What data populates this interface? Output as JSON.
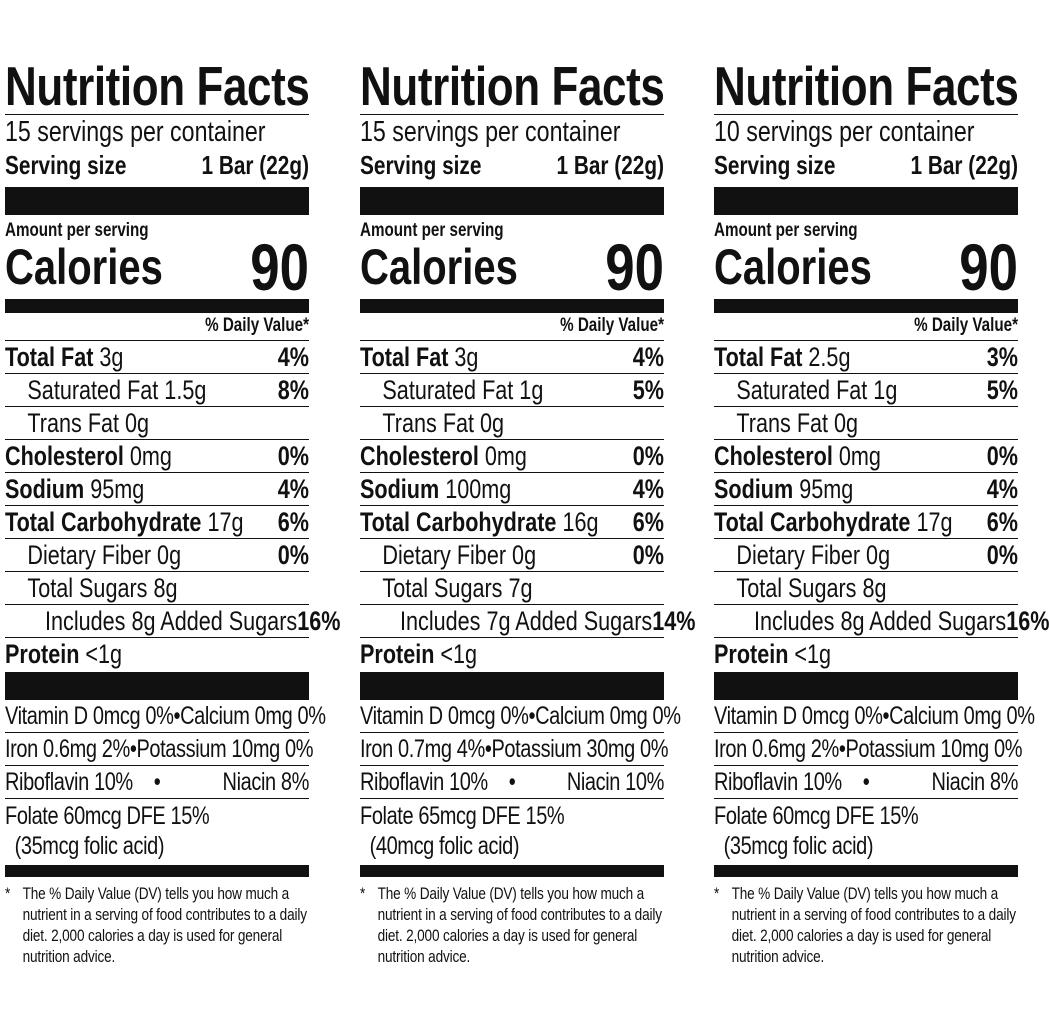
{
  "panels": [
    {
      "title": "Nutrition Facts",
      "servings": "15 servings per container",
      "serving_size_label": "Serving size",
      "serving_size_value": "1 Bar (22g)",
      "amount_per_serving": "Amount per serving",
      "calories_label": "Calories",
      "calories_value": "90",
      "dv_header": "% Daily Value*",
      "nutrients": [
        {
          "name": "Total Fat",
          "amount": "3g",
          "dv": "4%",
          "bold": true,
          "indent": 0
        },
        {
          "name": "Saturated Fat",
          "amount": "1.5g",
          "dv": "8%",
          "bold": false,
          "indent": 1
        },
        {
          "name": "Trans Fat",
          "amount": "0g",
          "dv": "",
          "bold": false,
          "indent": 1
        },
        {
          "name": "Cholesterol",
          "amount": "0mg",
          "dv": "0%",
          "bold": true,
          "indent": 0
        },
        {
          "name": "Sodium",
          "amount": "95mg",
          "dv": "4%",
          "bold": true,
          "indent": 0
        },
        {
          "name": "Total Carbohydrate",
          "amount": "17g",
          "dv": "6%",
          "bold": true,
          "indent": 0
        },
        {
          "name": "Dietary Fiber",
          "amount": "0g",
          "dv": "0%",
          "bold": false,
          "indent": 1
        },
        {
          "name": "Total Sugars",
          "amount": "8g",
          "dv": "",
          "bold": false,
          "indent": 1
        },
        {
          "name": "Includes 8g Added Sugars",
          "amount": "",
          "dv": "16%",
          "bold": false,
          "indent": 2
        },
        {
          "name": "Protein",
          "amount": "<1g",
          "dv": "",
          "bold": true,
          "indent": 0
        }
      ],
      "vitamins": [
        {
          "left": "Vitamin D 0mcg 0%",
          "right": "Calcium 0mg 0%"
        },
        {
          "left": "Iron 0.6mg 2%",
          "right": "Potassium 10mg 0%"
        },
        {
          "left": "Riboflavin 10%",
          "right": "Niacin 8%"
        }
      ],
      "folate": "Folate 60mcg DFE 15%",
      "folic_acid": "(35mcg folic acid)",
      "footnote_mark": "*",
      "footnote": "The % Daily Value (DV) tells you how much a nutrient in a serving of food contributes to a daily diet. 2,000 calories a day is used for general nutrition advice."
    },
    {
      "title": "Nutrition Facts",
      "servings": "15 servings per container",
      "serving_size_label": "Serving size",
      "serving_size_value": "1 Bar (22g)",
      "amount_per_serving": "Amount per serving",
      "calories_label": "Calories",
      "calories_value": "90",
      "dv_header": "% Daily Value*",
      "nutrients": [
        {
          "name": "Total Fat",
          "amount": "3g",
          "dv": "4%",
          "bold": true,
          "indent": 0
        },
        {
          "name": "Saturated Fat",
          "amount": "1g",
          "dv": "5%",
          "bold": false,
          "indent": 1
        },
        {
          "name": "Trans Fat",
          "amount": "0g",
          "dv": "",
          "bold": false,
          "indent": 1
        },
        {
          "name": "Cholesterol",
          "amount": "0mg",
          "dv": "0%",
          "bold": true,
          "indent": 0
        },
        {
          "name": "Sodium",
          "amount": "100mg",
          "dv": "4%",
          "bold": true,
          "indent": 0
        },
        {
          "name": "Total Carbohydrate",
          "amount": "16g",
          "dv": "6%",
          "bold": true,
          "indent": 0
        },
        {
          "name": "Dietary Fiber",
          "amount": "0g",
          "dv": "0%",
          "bold": false,
          "indent": 1
        },
        {
          "name": "Total Sugars",
          "amount": "7g",
          "dv": "",
          "bold": false,
          "indent": 1
        },
        {
          "name": "Includes 7g Added Sugars",
          "amount": "",
          "dv": "14%",
          "bold": false,
          "indent": 2
        },
        {
          "name": "Protein",
          "amount": "<1g",
          "dv": "",
          "bold": true,
          "indent": 0
        }
      ],
      "vitamins": [
        {
          "left": "Vitamin D 0mcg 0%",
          "right": "Calcium 0mg 0%"
        },
        {
          "left": "Iron 0.7mg 4%",
          "right": "Potassium 30mg 0%"
        },
        {
          "left": "Riboflavin 10%",
          "right": "Niacin 10%"
        }
      ],
      "folate": "Folate 65mcg DFE 15%",
      "folic_acid": "(40mcg folic acid)",
      "footnote_mark": "*",
      "footnote": "The % Daily Value (DV) tells you how much a nutrient in a serving of food contributes to a daily diet. 2,000 calories a day is used for general nutrition advice."
    },
    {
      "title": "Nutrition Facts",
      "servings": "10 servings per container",
      "serving_size_label": "Serving size",
      "serving_size_value": "1 Bar (22g)",
      "amount_per_serving": "Amount per serving",
      "calories_label": "Calories",
      "calories_value": "90",
      "dv_header": "% Daily Value*",
      "nutrients": [
        {
          "name": "Total Fat",
          "amount": "2.5g",
          "dv": "3%",
          "bold": true,
          "indent": 0
        },
        {
          "name": "Saturated Fat",
          "amount": "1g",
          "dv": "5%",
          "bold": false,
          "indent": 1
        },
        {
          "name": "Trans Fat",
          "amount": "0g",
          "dv": "",
          "bold": false,
          "indent": 1
        },
        {
          "name": "Cholesterol",
          "amount": "0mg",
          "dv": "0%",
          "bold": true,
          "indent": 0
        },
        {
          "name": "Sodium",
          "amount": "95mg",
          "dv": "4%",
          "bold": true,
          "indent": 0
        },
        {
          "name": "Total Carbohydrate",
          "amount": "17g",
          "dv": "6%",
          "bold": true,
          "indent": 0
        },
        {
          "name": "Dietary Fiber",
          "amount": "0g",
          "dv": "0%",
          "bold": false,
          "indent": 1
        },
        {
          "name": "Total Sugars",
          "amount": "8g",
          "dv": "",
          "bold": false,
          "indent": 1
        },
        {
          "name": "Includes 8g Added Sugars",
          "amount": "",
          "dv": "16%",
          "bold": false,
          "indent": 2
        },
        {
          "name": "Protein",
          "amount": "<1g",
          "dv": "",
          "bold": true,
          "indent": 0
        }
      ],
      "vitamins": [
        {
          "left": "Vitamin D 0mcg 0%",
          "right": "Calcium 0mg 0%"
        },
        {
          "left": "Iron 0.6mg 2%",
          "right": "Potassium 10mg 0%"
        },
        {
          "left": "Riboflavin 10%",
          "right": "Niacin 8%"
        }
      ],
      "folate": "Folate 60mcg DFE 15%",
      "folic_acid": "(35mcg folic acid)",
      "footnote_mark": "*",
      "footnote": "The % Daily Value (DV) tells you how much a nutrient in a serving of food contributes to a daily diet. 2,000 calories a day is used for general nutrition advice."
    }
  ]
}
